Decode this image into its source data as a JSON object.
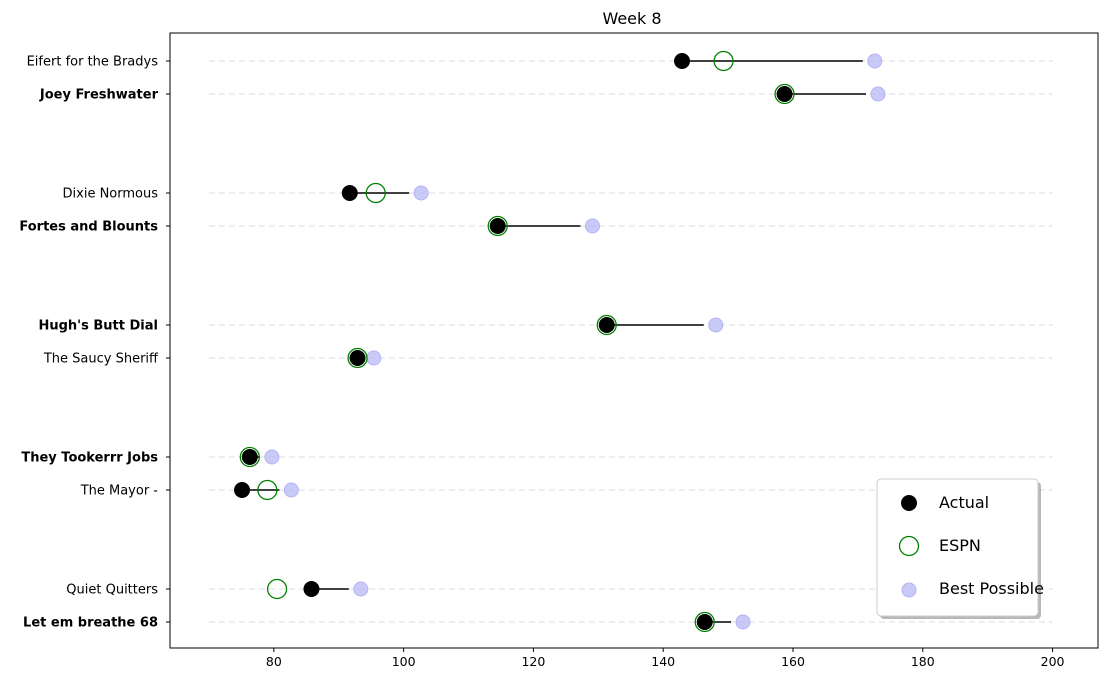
{
  "chart_data": {
    "type": "dumbbell",
    "title": "Week 8",
    "xlabel": "",
    "ylabel": "",
    "xlim": [
      64,
      207
    ],
    "x_ticks": [
      80,
      100,
      120,
      140,
      160,
      180,
      200
    ],
    "grid": "horizontal dashed",
    "legend_position": "lower-right",
    "legend": [
      {
        "key": "actual",
        "label": "Actual"
      },
      {
        "key": "espn",
        "label": "ESPN"
      },
      {
        "key": "best",
        "label": "Best Possible"
      }
    ],
    "colors": {
      "actual": "#000000",
      "espn": "#008000",
      "best": "#b3b3f5",
      "grid": "#dddddd",
      "line": "#000000"
    },
    "matchups": [
      {
        "teams": [
          {
            "name": "Eifert  for the Bradys",
            "winner": false,
            "actual": 142.9,
            "espn": 149.3,
            "best": 172.6
          },
          {
            "name": "Joey Freshwater",
            "winner": true,
            "actual": 158.7,
            "espn": 158.7,
            "best": 173.1
          }
        ]
      },
      {
        "teams": [
          {
            "name": "Dixie Normous",
            "winner": false,
            "actual": 91.7,
            "espn": 95.7,
            "best": 102.7
          },
          {
            "name": "Fortes and Blounts",
            "winner": true,
            "actual": 114.5,
            "espn": 114.5,
            "best": 129.1
          }
        ]
      },
      {
        "teams": [
          {
            "name": "Hugh's  Butt Dial",
            "winner": true,
            "actual": 131.3,
            "espn": 131.3,
            "best": 148.1
          },
          {
            "name": "The Saucy Sheriff",
            "winner": false,
            "actual": 92.9,
            "espn": 92.9,
            "best": 95.4
          }
        ]
      },
      {
        "teams": [
          {
            "name": "They Tookerrr Jobs",
            "winner": true,
            "actual": 76.3,
            "espn": 76.3,
            "best": 79.7
          },
          {
            "name": "The Mayor -",
            "winner": false,
            "actual": 75.1,
            "espn": 79.0,
            "best": 82.7
          }
        ]
      },
      {
        "teams": [
          {
            "name": "Quiet Quitters",
            "winner": false,
            "actual": 85.8,
            "espn": 80.5,
            "best": 93.4
          },
          {
            "name": "Let em breathe 68",
            "winner": true,
            "actual": 146.4,
            "espn": 146.4,
            "best": 152.3
          }
        ]
      }
    ]
  }
}
